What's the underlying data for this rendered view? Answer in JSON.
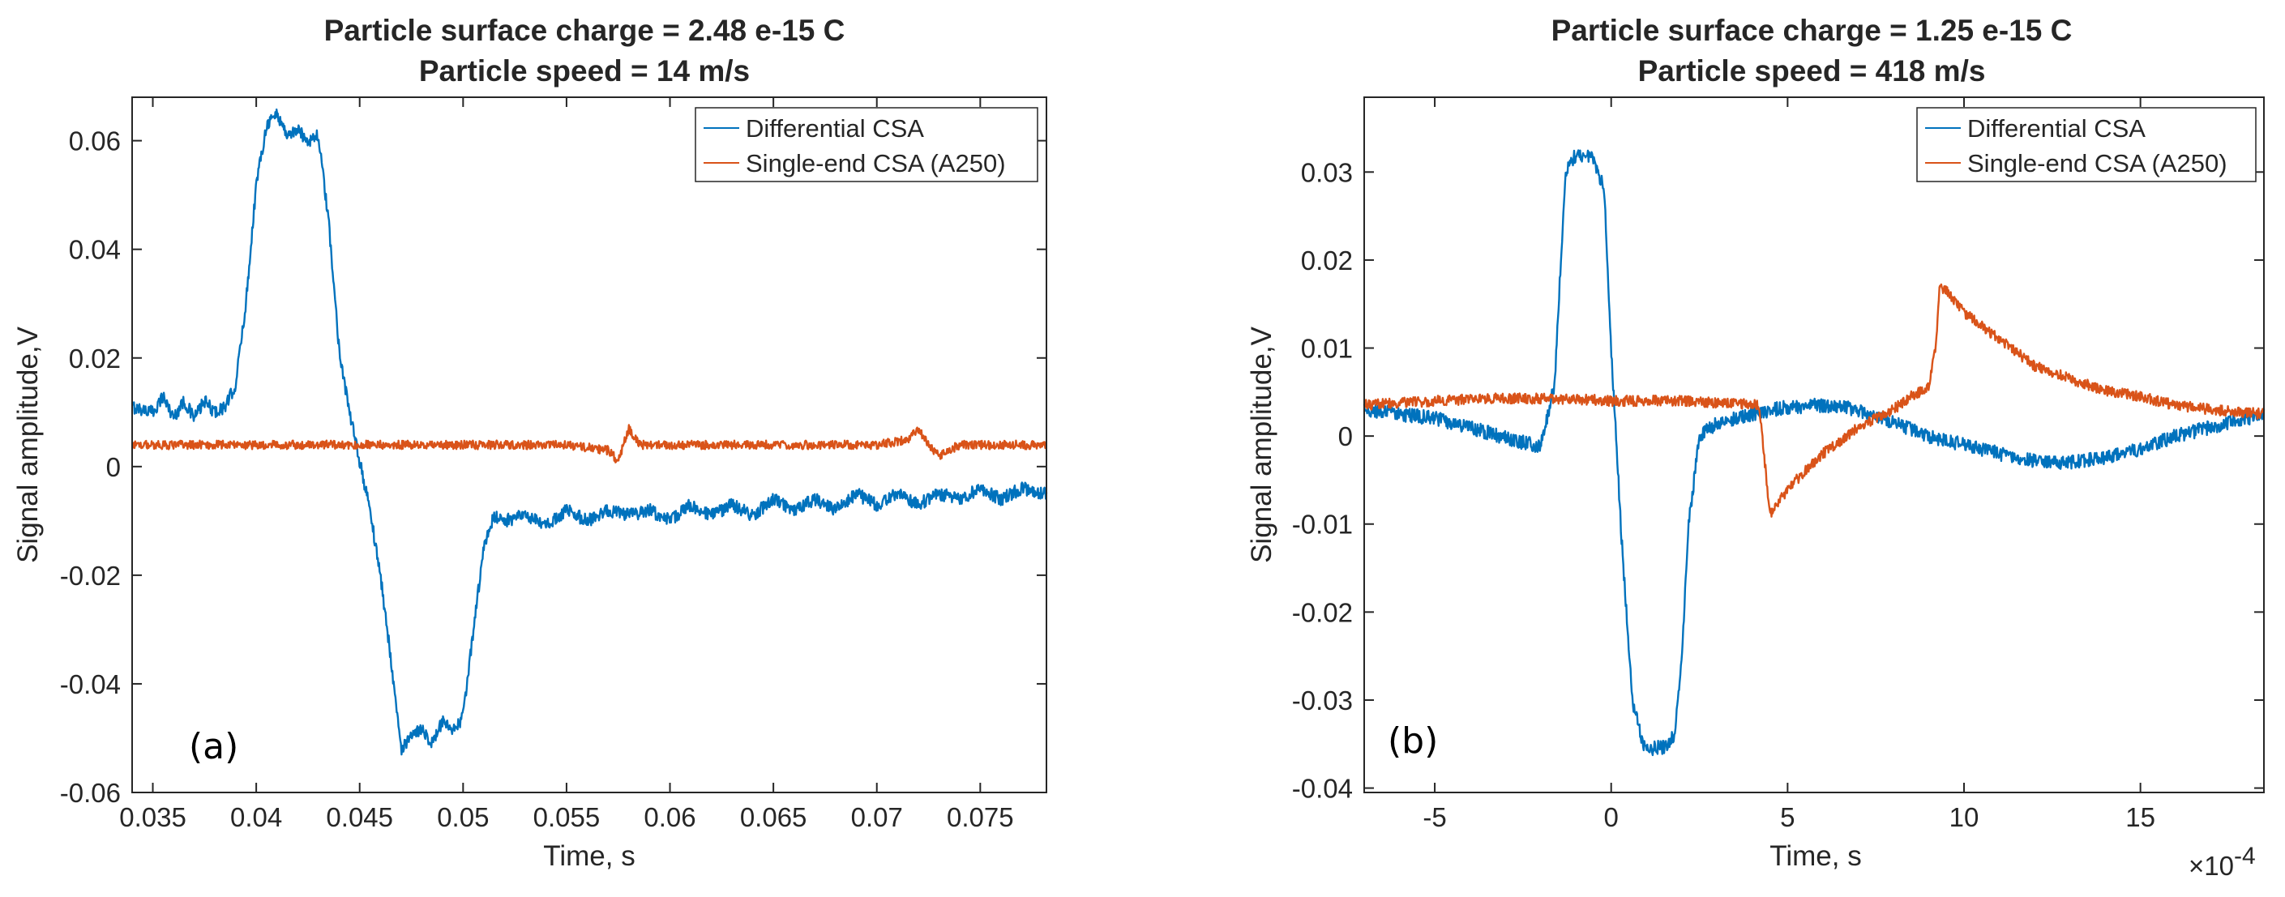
{
  "chart_data": [
    {
      "type": "line",
      "title": [
        "Particle surface charge = 2.48 e-15 C",
        "Particle speed = 14 m/s"
      ],
      "xlabel": "Time, s",
      "ylabel": "Signal amplitude,V",
      "panel_label": "(a)",
      "xlim": [
        0.034,
        0.0782
      ],
      "ylim": [
        -0.06,
        0.068
      ],
      "xticks": [
        0.035,
        0.04,
        0.045,
        0.05,
        0.055,
        0.06,
        0.065,
        0.07,
        0.075
      ],
      "xtick_labels": [
        "0.035",
        "0.04",
        "0.045",
        "0.05",
        "0.055",
        "0.06",
        "0.065",
        "0.07",
        "0.075"
      ],
      "yticks": [
        -0.06,
        -0.04,
        -0.02,
        0,
        0.02,
        0.04,
        0.06
      ],
      "ytick_labels": [
        "-0.06",
        "-0.04",
        "-0.02",
        "0",
        "0.02",
        "0.04",
        "0.06"
      ],
      "legend_position": "top-right",
      "series": [
        {
          "name": "Differential CSA",
          "color": "#0072BD",
          "noise": 0.0012,
          "x": [
            0.034,
            0.035,
            0.0355,
            0.036,
            0.0365,
            0.037,
            0.0375,
            0.038,
            0.0385,
            0.039,
            0.0395,
            0.04,
            0.0405,
            0.041,
            0.0415,
            0.042,
            0.0425,
            0.043,
            0.0435,
            0.044,
            0.0445,
            0.045,
            0.0455,
            0.046,
            0.0465,
            0.047,
            0.0475,
            0.048,
            0.0485,
            0.049,
            0.0495,
            0.05,
            0.0505,
            0.051,
            0.0515,
            0.052,
            0.053,
            0.054,
            0.055,
            0.056,
            0.057,
            0.058,
            0.059,
            0.06,
            0.061,
            0.062,
            0.063,
            0.064,
            0.065,
            0.066,
            0.067,
            0.068,
            0.069,
            0.07,
            0.071,
            0.072,
            0.073,
            0.074,
            0.075,
            0.076,
            0.077,
            0.0782
          ],
          "y": [
            0.011,
            0.01,
            0.013,
            0.009,
            0.012,
            0.009,
            0.012,
            0.01,
            0.011,
            0.015,
            0.03,
            0.052,
            0.063,
            0.065,
            0.061,
            0.062,
            0.06,
            0.061,
            0.045,
            0.022,
            0.01,
            0.001,
            -0.008,
            -0.02,
            -0.035,
            -0.052,
            -0.05,
            -0.048,
            -0.051,
            -0.047,
            -0.049,
            -0.046,
            -0.03,
            -0.015,
            -0.009,
            -0.01,
            -0.009,
            -0.011,
            -0.008,
            -0.01,
            -0.008,
            -0.009,
            -0.008,
            -0.01,
            -0.007,
            -0.009,
            -0.007,
            -0.009,
            -0.006,
            -0.008,
            -0.006,
            -0.008,
            -0.005,
            -0.007,
            -0.005,
            -0.007,
            -0.005,
            -0.006,
            -0.004,
            -0.006,
            -0.004,
            -0.005
          ]
        },
        {
          "name": "Single-end CSA (A250)",
          "color": "#D95319",
          "noise": 0.0008,
          "x": [
            0.034,
            0.04,
            0.045,
            0.05,
            0.055,
            0.057,
            0.0575,
            0.058,
            0.0585,
            0.06,
            0.065,
            0.07,
            0.0715,
            0.072,
            0.0725,
            0.073,
            0.074,
            0.0782
          ],
          "y": [
            0.004,
            0.004,
            0.004,
            0.004,
            0.004,
            0.003,
            0.001,
            0.007,
            0.004,
            0.004,
            0.004,
            0.004,
            0.005,
            0.007,
            0.004,
            0.002,
            0.004,
            0.004
          ]
        }
      ]
    },
    {
      "type": "line",
      "title": [
        "Particle surface charge = 1.25 e-15 C",
        "Particle speed = 418 m/s"
      ],
      "xlabel": "Time, s",
      "ylabel": "Signal amplitude,V",
      "panel_label": "(b)",
      "x_exponent_label": "×10",
      "x_exponent": "-4",
      "xlim": [
        -7,
        18.5
      ],
      "ylim": [
        -0.0405,
        0.0385
      ],
      "xticks": [
        -5,
        0,
        5,
        10,
        15
      ],
      "xtick_labels": [
        "-5",
        "0",
        "5",
        "10",
        "15"
      ],
      "yticks": [
        -0.04,
        -0.03,
        -0.02,
        -0.01,
        0,
        0.01,
        0.02,
        0.03
      ],
      "ytick_labels": [
        "-0.04",
        "-0.03",
        "-0.02",
        "-0.01",
        "0",
        "0.01",
        "0.02",
        "0.03"
      ],
      "legend_position": "top-right",
      "series": [
        {
          "name": "Differential CSA",
          "color": "#0072BD",
          "noise": 0.0008,
          "x": [
            -7,
            -5,
            -4,
            -3,
            -2,
            -1.6,
            -1.3,
            -1.0,
            -0.5,
            -0.2,
            0,
            0.3,
            0.6,
            0.9,
            1.2,
            1.5,
            1.8,
            2.0,
            2.2,
            2.5,
            3.0,
            4.0,
            5.0,
            6.0,
            7.0,
            8.0,
            9.0,
            10.0,
            11.0,
            12.0,
            13.0,
            14.0,
            15.0,
            16.0,
            17.0,
            18.5
          ],
          "y": [
            0.003,
            0.002,
            0.001,
            -0.0002,
            -0.0012,
            0.006,
            0.03,
            0.032,
            0.0315,
            0.028,
            0.01,
            -0.012,
            -0.03,
            -0.035,
            -0.0355,
            -0.0353,
            -0.034,
            -0.025,
            -0.01,
            0.0,
            0.0015,
            0.0025,
            0.0033,
            0.0035,
            0.003,
            0.0015,
            0.0,
            -0.001,
            -0.002,
            -0.0028,
            -0.003,
            -0.0025,
            -0.0015,
            0.0,
            0.001,
            0.0025
          ]
        },
        {
          "name": "Single-end CSA (A250)",
          "color": "#D95319",
          "noise": 0.0006,
          "x": [
            -7,
            -5,
            -3,
            -1,
            0,
            1,
            2,
            3,
            4.2,
            4.5,
            5.0,
            6.0,
            7.0,
            8.0,
            8.5,
            9.0,
            9.2,
            9.3,
            9.5,
            10.0,
            11.0,
            12.0,
            13.0,
            14.0,
            15.0,
            16.0,
            17.0,
            18.5
          ],
          "y": [
            0.0035,
            0.004,
            0.0043,
            0.0042,
            0.004,
            0.004,
            0.004,
            0.0038,
            0.0035,
            -0.009,
            -0.006,
            -0.002,
            0.001,
            0.003,
            0.0045,
            0.0055,
            0.01,
            0.017,
            0.0165,
            0.014,
            0.011,
            0.008,
            0.0065,
            0.0052,
            0.0045,
            0.0035,
            0.003,
            0.0025
          ]
        }
      ]
    }
  ]
}
